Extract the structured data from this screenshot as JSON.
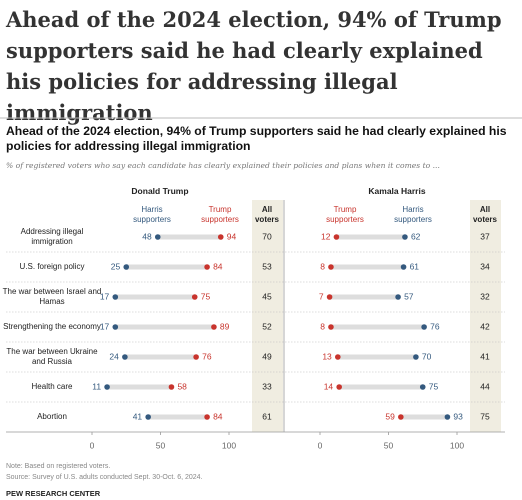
{
  "headline": "Ahead of the 2024 election, 94% of Trump supporters said he had clearly explained his policies for addressing illegal immigration",
  "chart_data": {
    "type": "dot",
    "title": "Ahead of the 2024 election, 94% of Trump supporters said he had clearly explained his policies for addressing illegal immigration",
    "subtitle": "% of registered voters who say each candidate has clearly explained their policies and plans when it comes to ...",
    "categories": [
      "Addressing illegal immigration",
      "U.S. foreign policy",
      "The war between Israel and Hamas",
      "Strengthening the economy",
      "The war between Ukraine and Russia",
      "Health care",
      "Abortion"
    ],
    "xlim": [
      0,
      100
    ],
    "xticks": [
      0,
      50,
      100
    ],
    "panels": [
      {
        "title": "Donald Trump",
        "series": [
          {
            "name": "Harris supporters",
            "color": "#34597e",
            "values": [
              48,
              25,
              17,
              17,
              24,
              11,
              41
            ]
          },
          {
            "name": "Trump supporters",
            "color": "#c8342d",
            "values": [
              94,
              84,
              75,
              89,
              76,
              58,
              84
            ]
          }
        ],
        "total": {
          "name": "All voters",
          "values": [
            70,
            53,
            45,
            52,
            49,
            33,
            61
          ]
        }
      },
      {
        "title": "Kamala Harris",
        "series": [
          {
            "name": "Trump supporters",
            "color": "#c8342d",
            "values": [
              12,
              8,
              7,
              8,
              13,
              14,
              59
            ]
          },
          {
            "name": "Harris supporters",
            "color": "#34597e",
            "values": [
              62,
              61,
              57,
              76,
              70,
              75,
              93
            ]
          }
        ],
        "total": {
          "name": "All voters",
          "values": [
            37,
            34,
            32,
            42,
            41,
            44,
            75
          ]
        }
      }
    ]
  },
  "notes": [
    "Note: Based on registered voters.",
    "Source: Survey of U.S. adults conducted Sept. 30-Oct. 6, 2024."
  ],
  "source_org": "PEW RESEARCH CENTER"
}
